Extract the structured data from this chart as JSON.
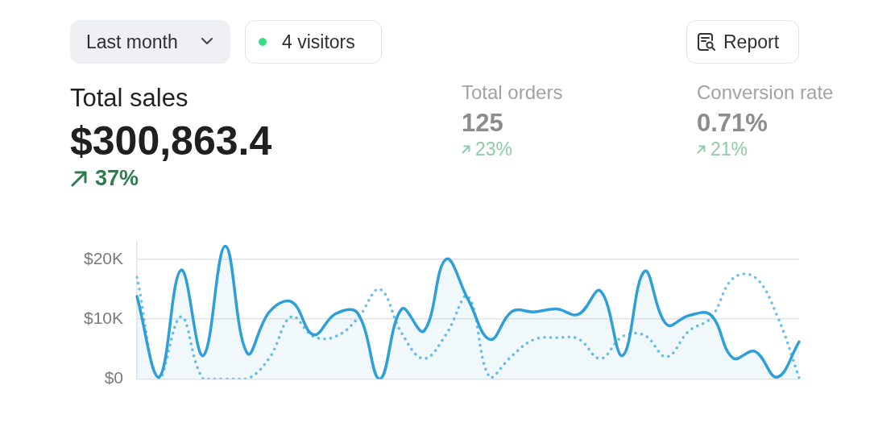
{
  "chart_data": {
    "type": "line",
    "title": "Total sales",
    "subtitle": "$300,863.4",
    "annotations": [
      "Last month",
      "4 visitors",
      "Report",
      "37%",
      "Total orders",
      "125",
      "23%",
      "Conversion rate",
      "0.71%",
      "21%"
    ],
    "categories": [
      null,
      null,
      null,
      null,
      null,
      null,
      null,
      null,
      null,
      null,
      null,
      null,
      null,
      null,
      null,
      null,
      null,
      null,
      null,
      null,
      null,
      null,
      null,
      null,
      null,
      null,
      null,
      null,
      null,
      null,
      null
    ],
    "series": [
      {
        "type": "area",
        "color": "#2e9fd8",
        "values": [
          13800,
          300,
          18200,
          3900,
          22200,
          4300,
          11200,
          12900,
          7400,
          10900,
          11000,
          0,
          11700,
          8000,
          20000,
          13300,
          6600,
          11300,
          11200,
          11700,
          10800,
          14700,
          3900,
          18000,
          9100,
          10600,
          10700,
          3500,
          4600,
          300,
          6200
        ]
      },
      {
        "type": "line",
        "line_style": "dotted",
        "color": "#6cc0ea",
        "values": [
          17000,
          0,
          10400,
          0,
          0,
          0,
          3500,
          10400,
          7100,
          7100,
          10100,
          15000,
          7600,
          3400,
          7400,
          13800,
          200,
          3900,
          6600,
          6900,
          6700,
          3400,
          7100,
          7300,
          3700,
          8000,
          10200,
          16800,
          17000,
          10600,
          200
        ]
      }
    ],
    "ylim": [
      0,
      23000
    ],
    "yticks": [
      {
        "value": 0,
        "label": "$0"
      },
      {
        "value": 10000,
        "label": "$10K"
      },
      {
        "value": 20000,
        "label": "$20K"
      }
    ],
    "grid": "y",
    "tick_labels": "y"
  }
}
